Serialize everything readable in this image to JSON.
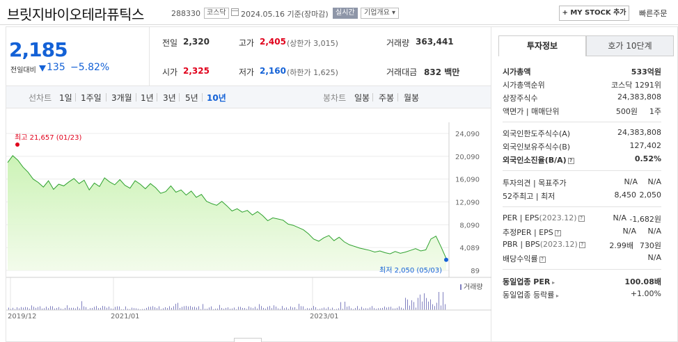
{
  "header": {
    "name": "브릿지바이오테라퓨틱스",
    "code": "288330",
    "market": "코스닥",
    "date": "2024.05.16  기준(장마감)",
    "realtime": "실시간",
    "company_info": "기업개요",
    "mystock": "+ MY STOCK 추가",
    "quick_order": "빠른주문"
  },
  "price": {
    "current": "2,185",
    "change_label": "전일대비",
    "change": "135",
    "change_pct": "−5.82%",
    "color_down": "#1361d6",
    "color_up": "#e0001b"
  },
  "stats": {
    "prev_label": "전일",
    "prev": "2,320",
    "high_label": "고가",
    "high": "2,405",
    "high_limit": "(상한가 3,015)",
    "volume_label": "거래량",
    "volume": "363,441",
    "open_label": "시가",
    "open": "2,325",
    "low_label": "저가",
    "low": "2,160",
    "low_limit": "(하한가 1,625)",
    "amount_label": "거래대금",
    "amount": "832 백만"
  },
  "toolbar": {
    "line_chart": "선차트",
    "periods": [
      "1일",
      "1주일",
      "3개월",
      "1년",
      "3년",
      "5년",
      "10년"
    ],
    "selected_period": "10년",
    "candle_chart": "봉차트",
    "candles": [
      "일봉",
      "주봉",
      "월봉"
    ]
  },
  "chart_data": {
    "type": "area",
    "y_ticks": [
      "24,090",
      "20,090",
      "16,090",
      "12,090",
      "8,090",
      "4,089",
      "89"
    ],
    "ylim": [
      89,
      24090
    ],
    "x_ticks": [
      "2019/12",
      "2021/01",
      "2023/01"
    ],
    "max_label": "최고  21,657 (01/23)",
    "min_label": "최저  2,050 (05/03)",
    "volume_legend": "거래량",
    "series_values": [
      19000,
      20200,
      19400,
      18200,
      17300,
      16100,
      15500,
      14700,
      15800,
      14300,
      15200,
      14900,
      15600,
      16200,
      15300,
      15900,
      14200,
      15400,
      14800,
      16300,
      15600,
      15100,
      16000,
      15000,
      14500,
      15800,
      15200,
      14400,
      15300,
      14600,
      13600,
      13900,
      14900,
      13800,
      14200,
      13300,
      14000,
      12900,
      13400,
      12200,
      11800,
      11500,
      12200,
      11400,
      10500,
      10900,
      10300,
      10600,
      9800,
      10400,
      9700,
      8800,
      9300,
      9100,
      8900,
      8200,
      8000,
      7600,
      7200,
      6500,
      5600,
      5200,
      5800,
      6200,
      5300,
      5900,
      5100,
      4600,
      4300,
      4000,
      3800,
      3600,
      3300,
      3500,
      3200,
      3000,
      3400,
      3100,
      3300,
      3600,
      3900,
      3500,
      3700,
      5600,
      6100,
      4200,
      2185
    ],
    "accent": "#2ea12e"
  },
  "side": {
    "tab_invest": "투자정보",
    "tab_quote": "호가 10단계",
    "market_cap_label": "시가총액",
    "market_cap": "533억원",
    "market_cap_rank_label": "시가총액순위",
    "market_cap_rank": "코스닥 1291위",
    "shares_label": "상장주식수",
    "shares": "24,383,808",
    "par_label": "액면가 | 매매단위",
    "par": "500원",
    "unit": "1주",
    "foreign_limit_label": "외국인한도주식수(A)",
    "foreign_limit": "24,383,808",
    "foreign_hold_label": "외국인보유주식수(B)",
    "foreign_hold": "127,402",
    "foreign_ratio_label": "외국인소진율(B/A)",
    "foreign_ratio": "0.52%",
    "opinion_label": "투자의견 | 목표주가",
    "opinion": "N/A",
    "target": "N/A",
    "w52_label": "52주최고 | 최저",
    "w52_high": "8,450",
    "w52_low": "2,050",
    "per_label": "PER | EPS",
    "eps_date": "(2023.12)",
    "per": "N/A",
    "eps": "-1,682원",
    "est_per_label": "추정PER | EPS",
    "est_per": "N/A",
    "est_eps": "N/A",
    "pbr_label": "PBR | BPS",
    "bps_date": "(2023.12)",
    "pbr": "2.99배",
    "bps": "730원",
    "div_label": "배당수익률",
    "div": "N/A",
    "ind_per_label": "동일업종 PER",
    "ind_per": "100.08배",
    "ind_rate_label": "동일업종 등락률",
    "ind_rate": "+1.00%"
  }
}
